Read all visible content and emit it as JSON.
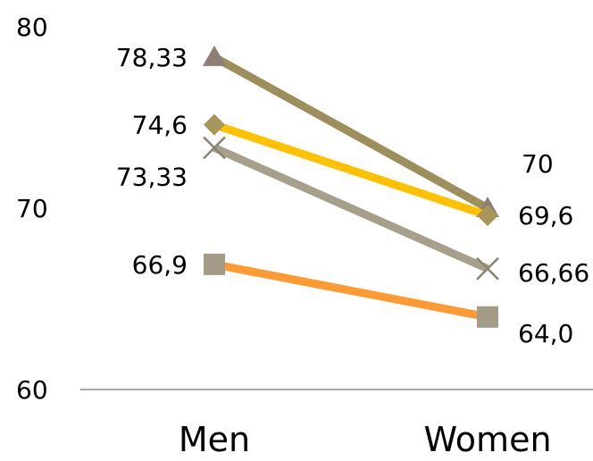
{
  "chart_data": {
    "type": "line",
    "title": "",
    "xlabel": "",
    "ylabel": "",
    "categories": [
      "Men",
      "Women"
    ],
    "ylim": [
      60,
      80
    ],
    "yticks": [
      "60",
      "70",
      "80"
    ],
    "grid": false,
    "legend": "none",
    "series": [
      {
        "values": [
          78.33,
          70
        ],
        "labels": [
          "78,33",
          "70"
        ],
        "color": "#9C8F5C",
        "marker": "triangle",
        "marker_color": "#8E7E77"
      },
      {
        "values": [
          74.6,
          69.6
        ],
        "labels": [
          "74,6",
          "69,6"
        ],
        "color": "#FFC000",
        "marker": "diamond",
        "marker_color": "#A8975A"
      },
      {
        "values": [
          73.33,
          66.66
        ],
        "labels": [
          "73,33",
          "66,66"
        ],
        "color": "#A69F8A",
        "marker": "x",
        "marker_color": "#8C8472"
      },
      {
        "values": [
          66.9,
          64.0
        ],
        "labels": [
          "66,9",
          "64,0"
        ],
        "color": "#FF9A33",
        "marker": "square",
        "marker_color": "#A39B86"
      }
    ]
  }
}
